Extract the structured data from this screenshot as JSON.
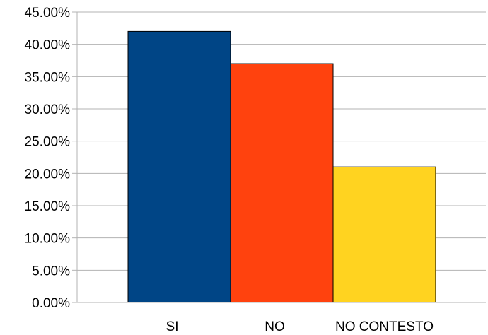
{
  "chart_data": {
    "type": "bar",
    "title": "",
    "xlabel": "",
    "ylabel": "",
    "categories": [
      "SI",
      "NO",
      "NO CONTESTO"
    ],
    "values": [
      42.0,
      37.0,
      21.0
    ],
    "colors": [
      "#004586",
      "#ff420e",
      "#ffd320"
    ],
    "ylim": [
      0,
      45
    ],
    "yticks": [
      0,
      5,
      10,
      15,
      20,
      25,
      30,
      35,
      40,
      45
    ],
    "ytick_labels": [
      "0.00%",
      "5.00%",
      "10.00%",
      "15.00%",
      "20.00%",
      "25.00%",
      "30.00%",
      "35.00%",
      "40.00%",
      "45.00%"
    ],
    "grid": true,
    "legend": "none"
  }
}
